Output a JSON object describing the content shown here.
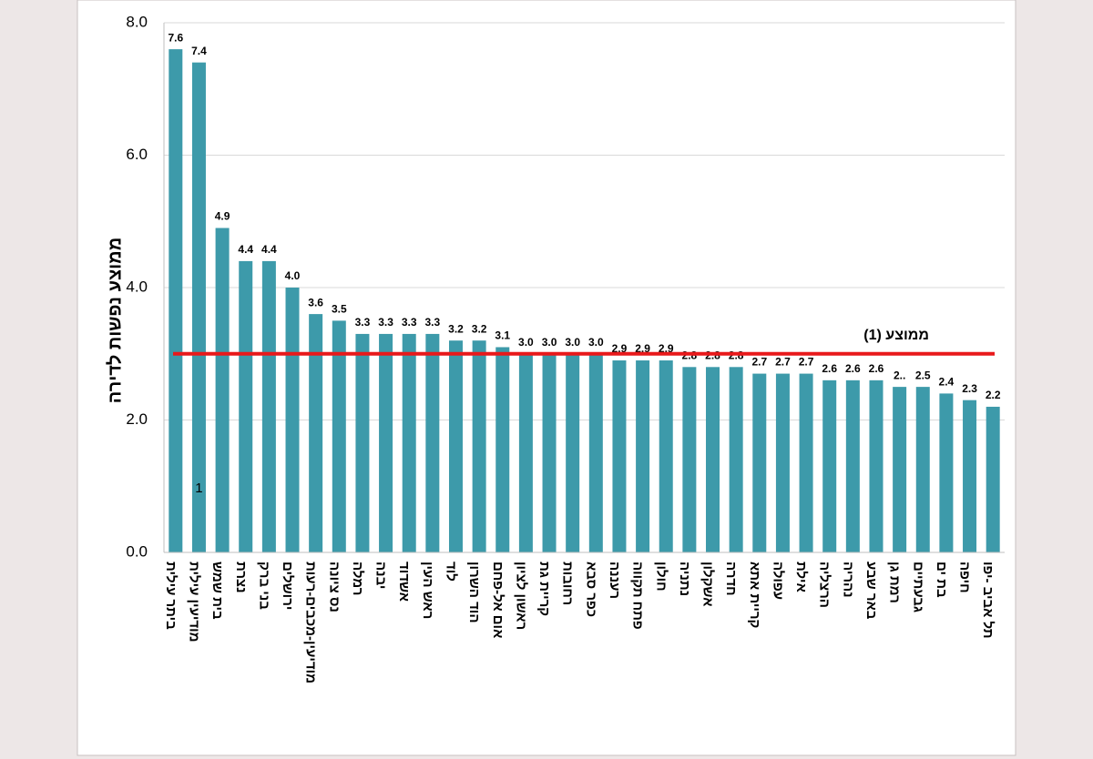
{
  "chart_data": {
    "type": "bar",
    "y_label": "ממוצע נפשות לדירה",
    "categories": [
      "ביתר עילית",
      "מודיעין עילית",
      "בית שמש",
      "נצרת",
      "בני ברק",
      "ירושלים",
      "מודיעין-מכבים-רעות",
      "נס ציונה",
      "רמלה",
      "יבנה",
      "אשדוד",
      "ראש העין",
      "לוד",
      "הוד השרון",
      "אום אל-פחם",
      "ראשון לציון",
      "קריית גת",
      "רחובות",
      "כפר סבא",
      "רעננה",
      "פתח תקווה",
      "חולון",
      "נתניה",
      "אשקלון",
      "חדרה",
      "קריית אתא",
      "עפולה",
      "אילת",
      "הרצליה",
      "נהריה",
      "באר שבע",
      "רמת גן",
      "גבעתיים",
      "בת ים",
      "חיפה",
      "תל אביב -יפו"
    ],
    "values": [
      7.6,
      7.4,
      4.9,
      4.4,
      4.4,
      4.0,
      3.6,
      3.5,
      3.3,
      3.3,
      3.3,
      3.3,
      3.2,
      3.2,
      3.1,
      3.0,
      3.0,
      3.0,
      3.0,
      2.9,
      2.9,
      2.9,
      2.8,
      2.8,
      2.8,
      2.7,
      2.7,
      2.7,
      2.6,
      2.6,
      2.6,
      2.5,
      2.5,
      2.4,
      2.3,
      2.2
    ],
    "value_labels": [
      "7.6",
      "7.4",
      "4.9",
      "4.4",
      "4.4",
      "4.0",
      "3.6",
      "3.5",
      "3.3",
      "3.3",
      "3.3",
      "3.3",
      "3.2",
      "3.2",
      "3.1",
      "3.0",
      "3.0",
      "3.0",
      "3.0",
      "2.9",
      "2.9",
      "2.9",
      "2.8",
      "2.8",
      "2.8",
      "2.7",
      "2.7",
      "2.7",
      "2.6",
      "2.6",
      "2.6",
      "2..",
      "2.5",
      "2.4",
      "2.3",
      "2.2"
    ],
    "color": "#3d9aaa",
    "average": {
      "name": "ממוצע (1)",
      "value": 3.0,
      "color": "#e8191b"
    },
    "annotation": "1",
    "ylim": [
      0,
      8
    ],
    "yticks": [
      {
        "value": 0,
        "label": "0.0"
      },
      {
        "value": 2,
        "label": "2.0"
      },
      {
        "value": 4,
        "label": "4.0"
      },
      {
        "value": 6,
        "label": "6.0"
      },
      {
        "value": 8,
        "label": "8.0"
      }
    ],
    "grid": true
  }
}
